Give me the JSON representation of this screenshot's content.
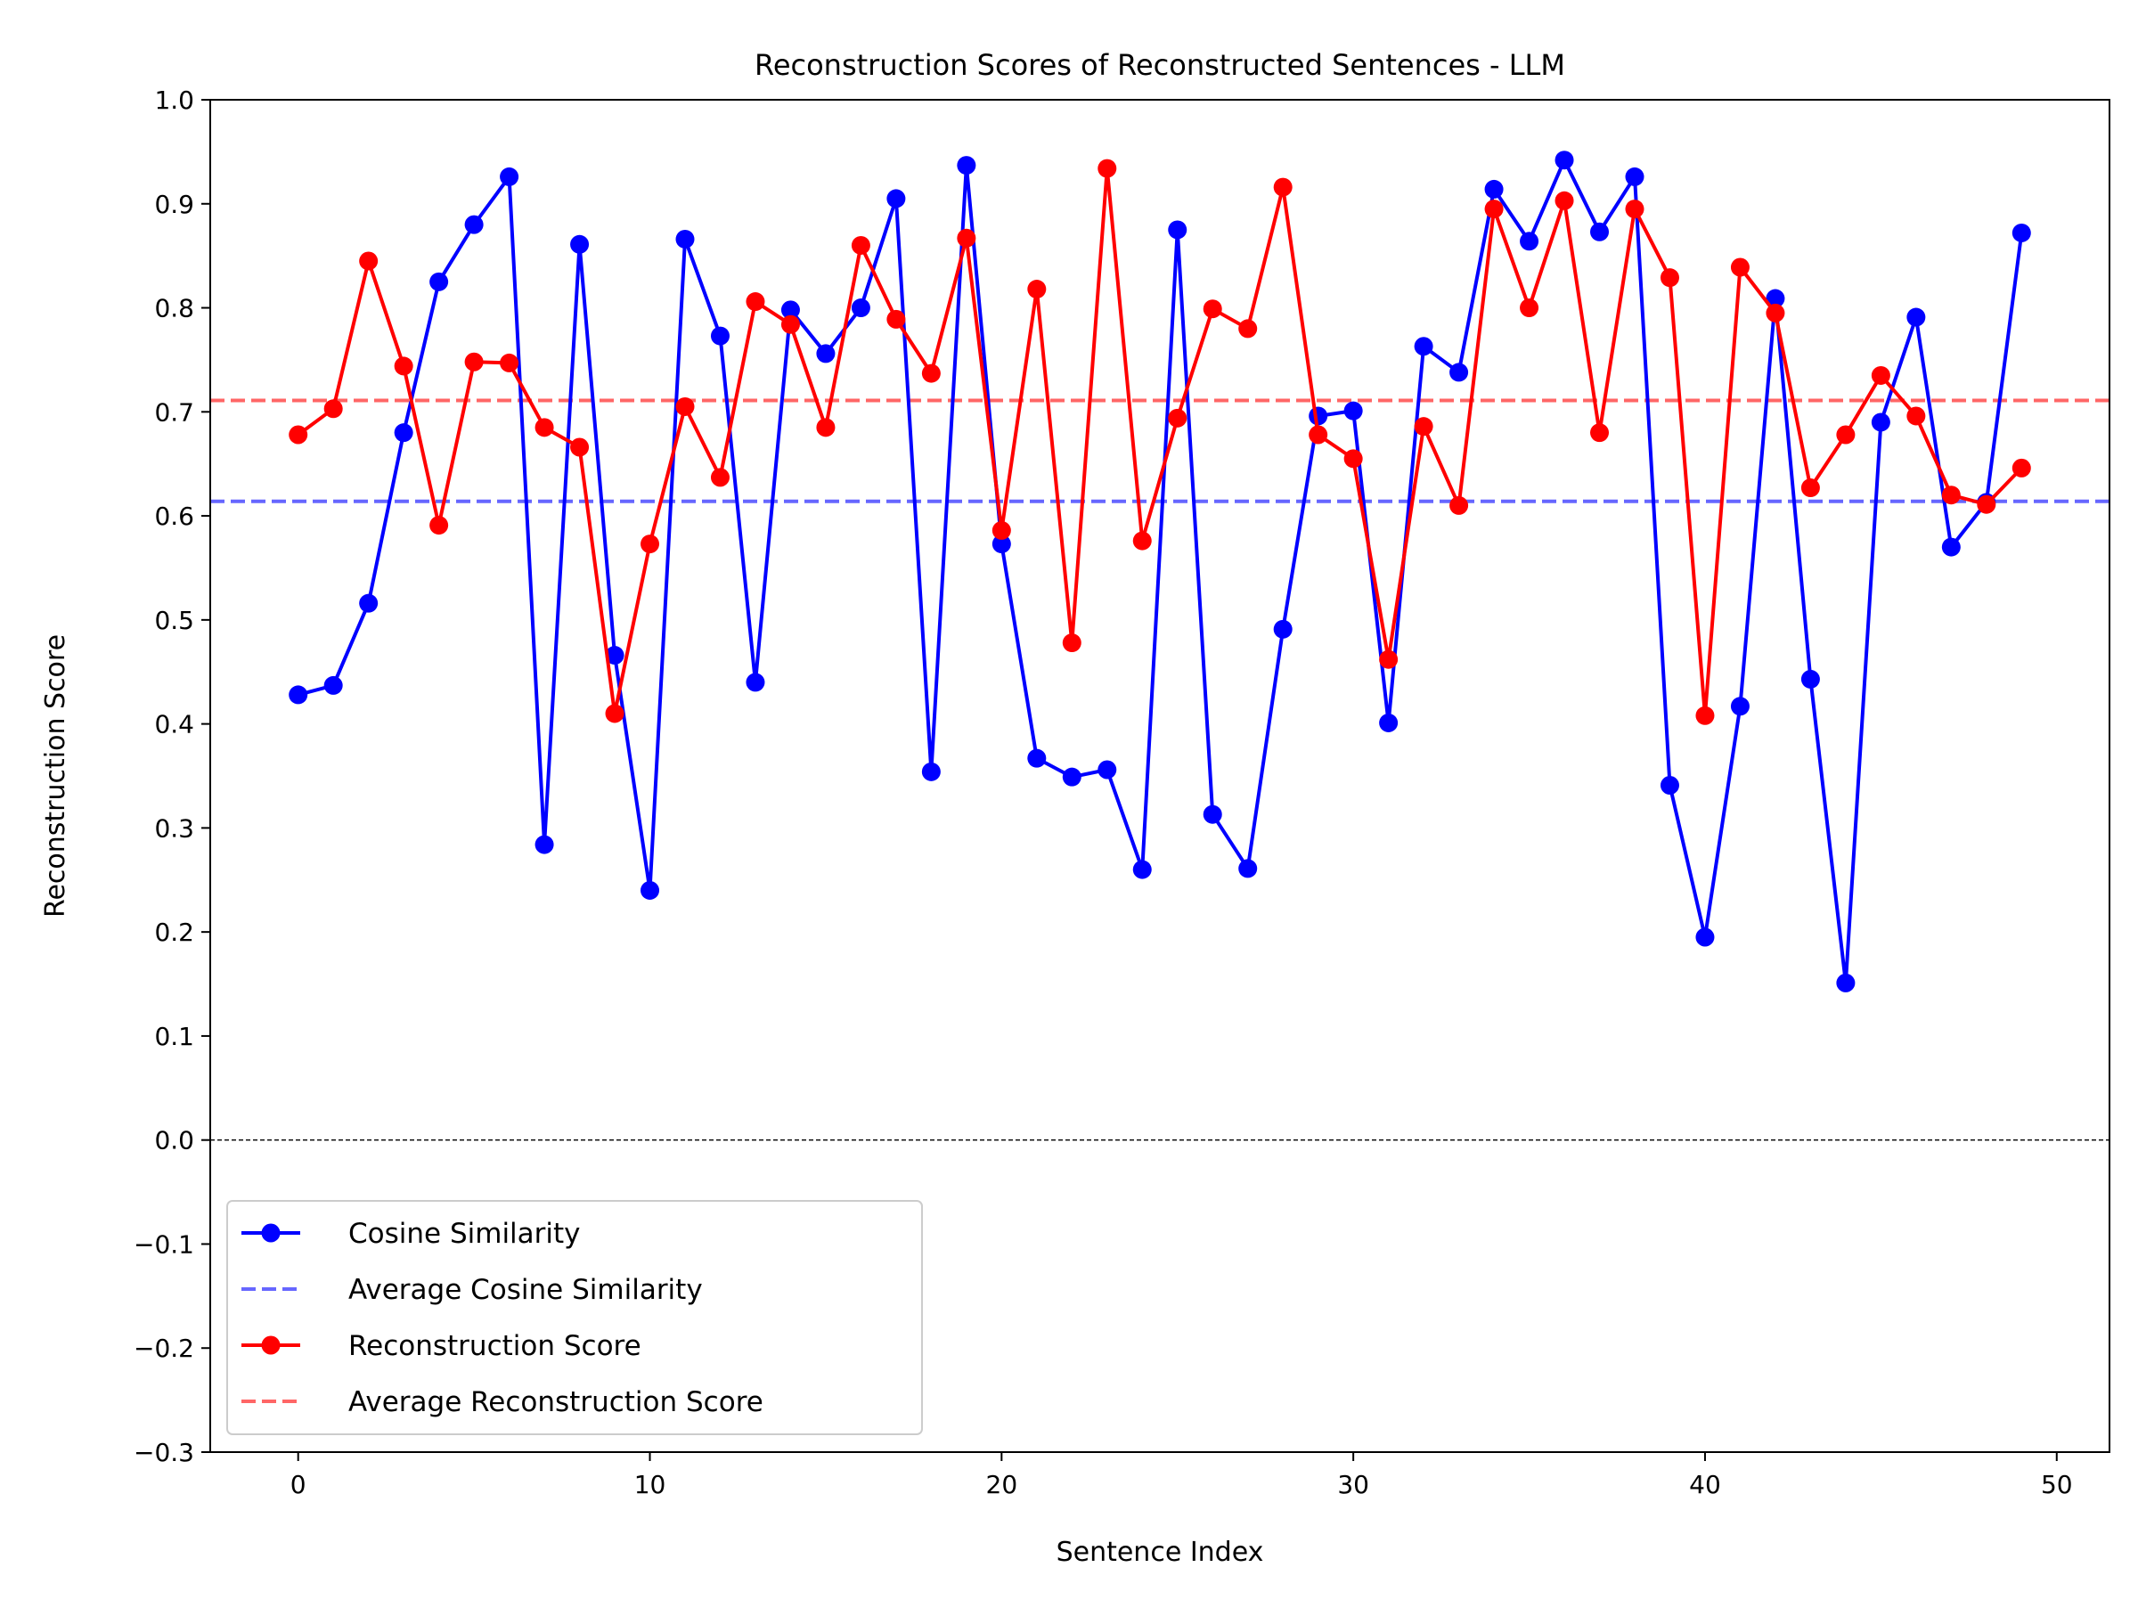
{
  "chart_data": {
    "type": "line",
    "title": "Reconstruction Scores of Reconstructed Sentences - LLM",
    "xlabel": "Sentence Index",
    "ylabel": "Reconstruction Score",
    "xlim": [
      -2.5,
      51.5
    ],
    "ylim": [
      -0.3,
      1.0
    ],
    "x_ticks": [
      0,
      10,
      20,
      30,
      40,
      50
    ],
    "x_tick_labels": [
      "0",
      "10",
      "20",
      "30",
      "40",
      "50"
    ],
    "y_ticks": [
      -0.3,
      -0.2,
      -0.1,
      0.0,
      0.1,
      0.2,
      0.3,
      0.4,
      0.5,
      0.6,
      0.7,
      0.8,
      0.9,
      1.0
    ],
    "y_tick_labels": [
      "−0.3",
      "−0.2",
      "−0.1",
      "0.0",
      "0.1",
      "0.2",
      "0.3",
      "0.4",
      "0.5",
      "0.6",
      "0.7",
      "0.8",
      "0.9",
      "1.0"
    ],
    "grid": false,
    "legend_position": "lower-left",
    "zero_line": {
      "y": 0.0,
      "color": "#000000",
      "style": "dashed"
    },
    "x": [
      0,
      1,
      2,
      3,
      4,
      5,
      6,
      7,
      8,
      9,
      10,
      11,
      12,
      13,
      14,
      15,
      16,
      17,
      18,
      19,
      20,
      21,
      22,
      23,
      24,
      25,
      26,
      27,
      28,
      29,
      30,
      31,
      32,
      33,
      34,
      35,
      36,
      37,
      38,
      39,
      40,
      41,
      42,
      43,
      44,
      45,
      46,
      47,
      48,
      49
    ],
    "series": [
      {
        "name": "Cosine Similarity",
        "color": "#0000ff",
        "style": "line-marker",
        "values": [
          0.428,
          0.437,
          0.516,
          0.68,
          0.825,
          0.88,
          0.926,
          0.284,
          0.861,
          0.466,
          0.24,
          0.866,
          0.773,
          0.44,
          0.798,
          0.756,
          0.8,
          0.905,
          0.354,
          0.937,
          0.573,
          0.367,
          0.349,
          0.356,
          0.26,
          0.875,
          0.313,
          0.261,
          0.491,
          0.696,
          0.701,
          0.401,
          0.763,
          0.738,
          0.914,
          0.864,
          0.942,
          0.873,
          0.926,
          0.341,
          0.195,
          0.417,
          0.809,
          0.443,
          0.151,
          0.69,
          0.791,
          0.57,
          0.613,
          0.872
        ]
      },
      {
        "name": "Average Cosine Similarity",
        "color": "#6666ff",
        "style": "dashed",
        "value": 0.614
      },
      {
        "name": "Reconstruction Score",
        "color": "#ff0000",
        "style": "line-marker",
        "values": [
          0.678,
          0.703,
          0.845,
          0.744,
          0.591,
          0.748,
          0.747,
          0.685,
          0.666,
          0.41,
          0.573,
          0.705,
          0.637,
          0.806,
          0.784,
          0.685,
          0.86,
          0.789,
          0.737,
          0.867,
          0.586,
          0.818,
          0.478,
          0.934,
          0.576,
          0.694,
          0.799,
          0.78,
          0.916,
          0.678,
          0.655,
          0.462,
          0.686,
          0.61,
          0.895,
          0.8,
          0.903,
          0.68,
          0.895,
          0.829,
          0.408,
          0.839,
          0.795,
          0.627,
          0.678,
          0.735,
          0.696,
          0.62,
          0.611,
          0.646
        ]
      },
      {
        "name": "Average Reconstruction Score",
        "color": "#ff6666",
        "style": "dashed",
        "value": 0.711
      }
    ]
  }
}
